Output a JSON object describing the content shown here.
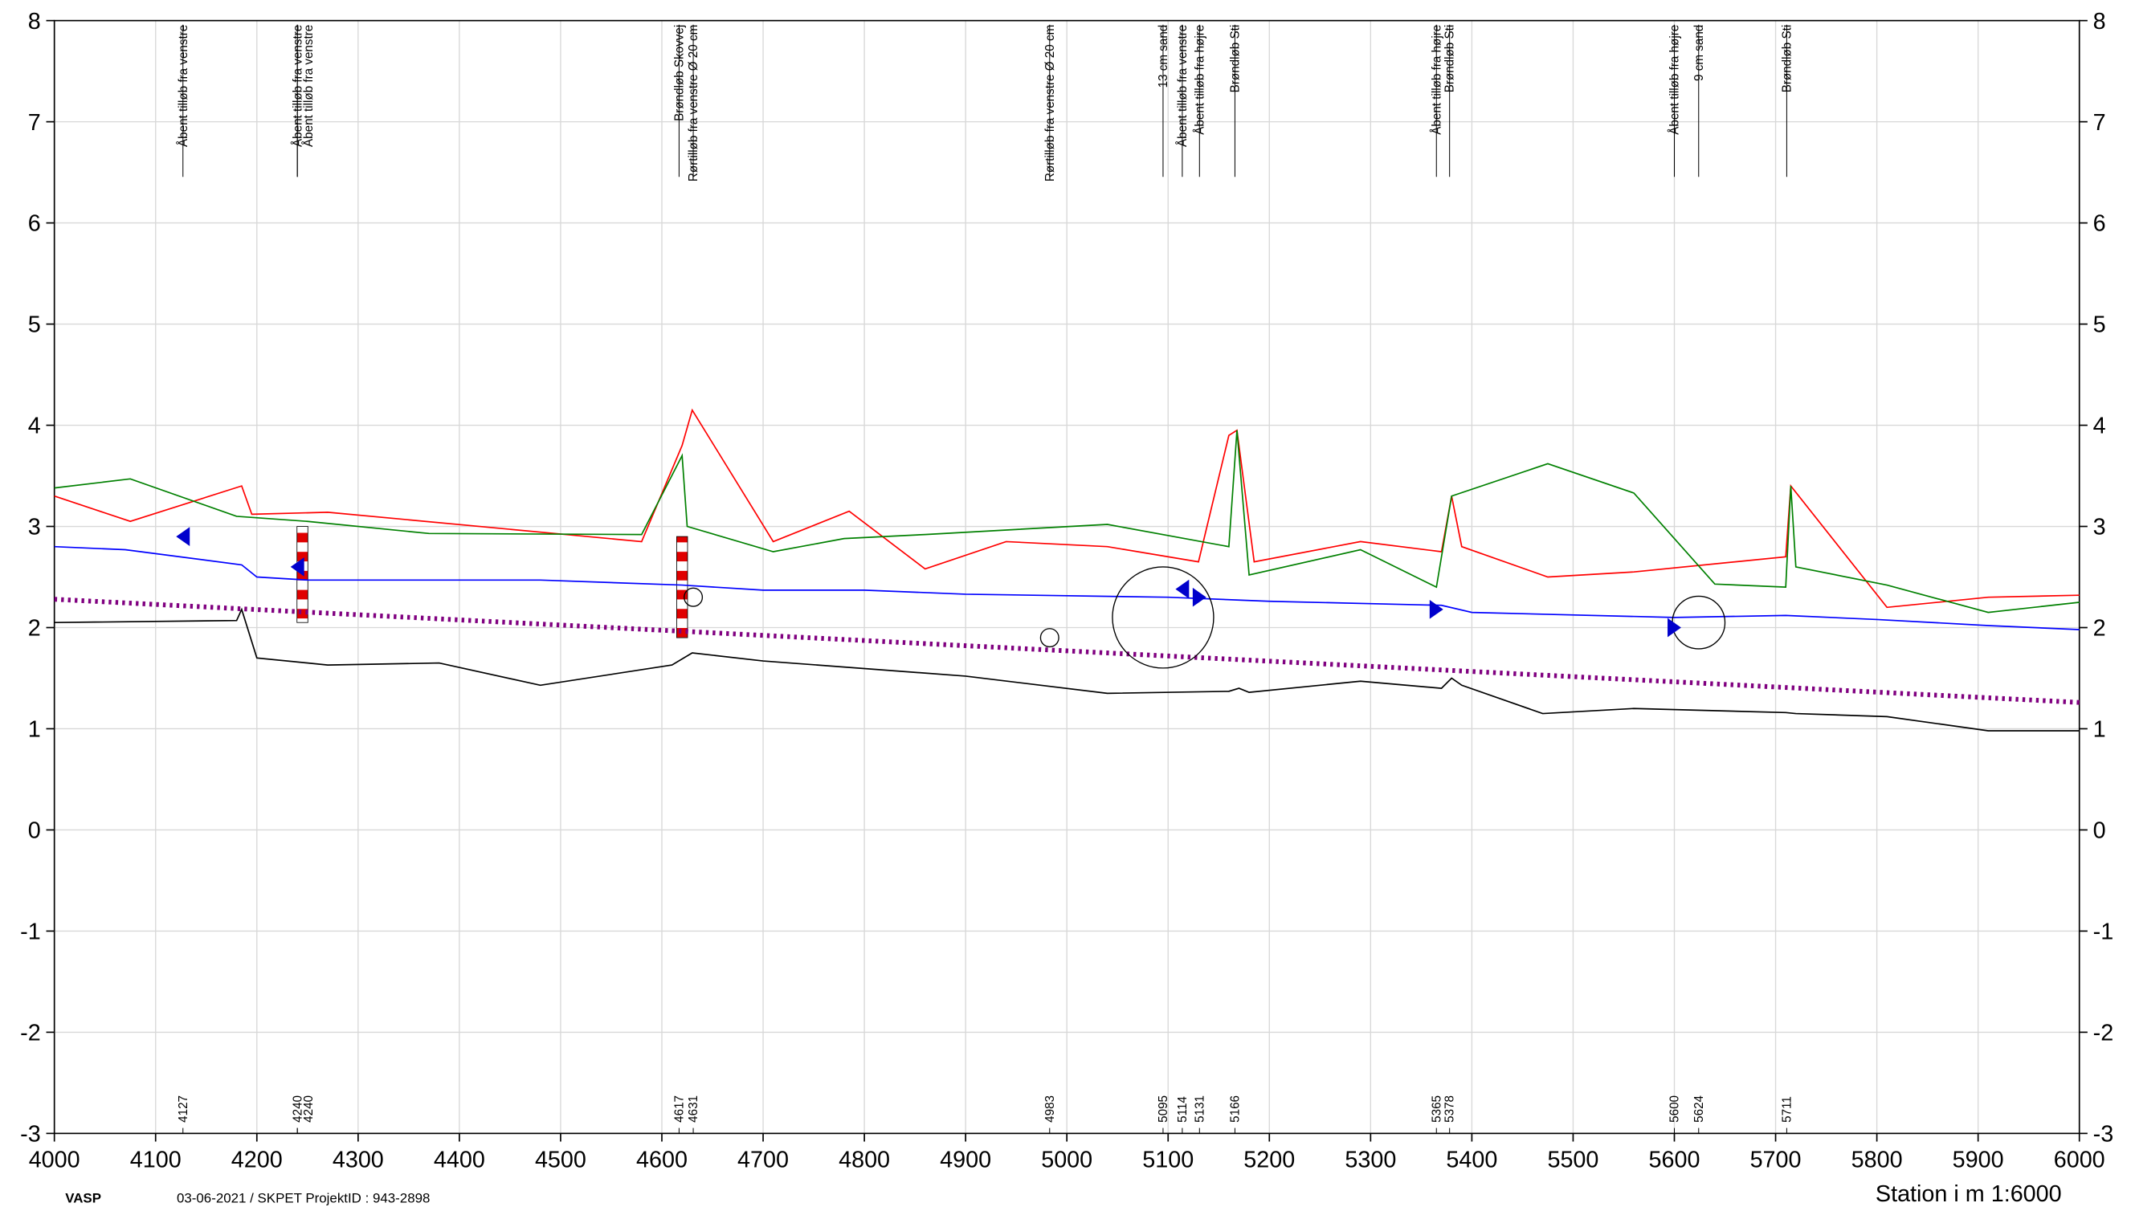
{
  "chart_data": {
    "type": "line",
    "xlim": [
      4000,
      6000
    ],
    "ylim": [
      -3,
      8
    ],
    "xticks": [
      4000,
      4100,
      4200,
      4300,
      4400,
      4500,
      4600,
      4700,
      4800,
      4900,
      5000,
      5100,
      5200,
      5300,
      5400,
      5500,
      5600,
      5700,
      5800,
      5900,
      6000
    ],
    "yticks": [
      -3,
      -2,
      -1,
      0,
      1,
      2,
      3,
      4,
      5,
      6,
      7,
      8
    ],
    "grid": true,
    "x_label": "Station i m  1:6000",
    "footer_left": "VASP",
    "footer_info": "03-06-2021 / SKPET   ProjektID : 943-2898",
    "series": [
      {
        "name": "red",
        "color": "#ff0000",
        "x": [
          4000,
          4075,
          4185,
          4195,
          4270,
          4580,
          4620,
          4630,
          4710,
          4785,
          4860,
          4940,
          5040,
          5130,
          5160,
          5168,
          5185,
          5290,
          5370,
          5380,
          5390,
          5475,
          5560,
          5710,
          5715,
          5810,
          5910,
          6000
        ],
        "values": [
          3.3,
          3.05,
          3.4,
          3.12,
          3.14,
          2.85,
          3.8,
          4.15,
          2.85,
          3.15,
          2.58,
          2.85,
          2.8,
          2.65,
          3.9,
          3.95,
          2.65,
          2.85,
          2.75,
          3.3,
          2.8,
          2.5,
          2.55,
          2.7,
          3.4,
          2.2,
          2.3,
          2.32
        ]
      },
      {
        "name": "green",
        "color": "#008000",
        "x": [
          4000,
          4075,
          4180,
          4250,
          4370,
          4580,
          4620,
          4625,
          4710,
          4780,
          4860,
          5040,
          5160,
          5168,
          5180,
          5290,
          5365,
          5380,
          5475,
          5560,
          5640,
          5710,
          5715,
          5720,
          5810,
          5910,
          6000
        ],
        "values": [
          3.38,
          3.47,
          3.1,
          3.05,
          2.93,
          2.92,
          3.7,
          3.0,
          2.75,
          2.88,
          2.92,
          3.02,
          2.8,
          3.95,
          2.52,
          2.77,
          2.4,
          3.3,
          3.62,
          3.33,
          2.43,
          2.4,
          3.4,
          2.6,
          2.42,
          2.15,
          2.25
        ]
      },
      {
        "name": "blue",
        "color": "#0000ff",
        "x": [
          4000,
          4070,
          4185,
          4200,
          4250,
          4480,
          4620,
          4700,
          4800,
          4900,
          5100,
          5200,
          5370,
          5400,
          5600,
          5710,
          5800,
          5910,
          6000
        ],
        "values": [
          2.8,
          2.77,
          2.62,
          2.5,
          2.47,
          2.47,
          2.42,
          2.37,
          2.37,
          2.33,
          2.3,
          2.26,
          2.22,
          2.15,
          2.1,
          2.12,
          2.08,
          2.02,
          1.98
        ]
      },
      {
        "name": "black",
        "color": "#000000",
        "x": [
          4000,
          4180,
          4185,
          4200,
          4270,
          4380,
          4480,
          4610,
          4630,
          4700,
          4900,
          5040,
          5160,
          5170,
          5180,
          5290,
          5370,
          5380,
          5390,
          5470,
          5560,
          5710,
          5720,
          5810,
          5910,
          6000
        ],
        "values": [
          2.05,
          2.07,
          2.18,
          1.7,
          1.63,
          1.65,
          1.43,
          1.63,
          1.75,
          1.67,
          1.52,
          1.35,
          1.37,
          1.4,
          1.36,
          1.47,
          1.4,
          1.5,
          1.43,
          1.15,
          1.2,
          1.16,
          1.15,
          1.12,
          0.98,
          0.98
        ]
      },
      {
        "name": "purple",
        "color": "#800080",
        "dotted": true,
        "x": [
          4000,
          6000
        ],
        "values": [
          2.28,
          1.26
        ]
      }
    ],
    "stations": [
      {
        "x": 4127,
        "label": "4127",
        "text": "Åbent tilløb fra venstre"
      },
      {
        "x": 4240,
        "label": "4240",
        "text": "Åbent tilløb fra venstre"
      },
      {
        "x": 4240,
        "label": "4240",
        "text": "Åbent tilløb fra venstre"
      },
      {
        "x": 4617,
        "label": "4617",
        "text": "Brøndløb Skovvej"
      },
      {
        "x": 4631,
        "label": "4631",
        "text": "Rørtilløb fra venstre Ø 20 cm"
      },
      {
        "x": 4983,
        "label": "4983",
        "text": "Rørtilløb fra venstre Ø 20 cm"
      },
      {
        "x": 5095,
        "label": "5095",
        "text": "13 cm sand"
      },
      {
        "x": 5114,
        "label": "5114",
        "text": "Åbent tilløb fra venstre"
      },
      {
        "x": 5131,
        "label": "5131",
        "text": "Åbent tilløb fra højre"
      },
      {
        "x": 5166,
        "label": "5166",
        "text": "Brøndløb Sti"
      },
      {
        "x": 5365,
        "label": "5365",
        "text": "Åbent tilløb fra højre"
      },
      {
        "x": 5378,
        "label": "5378",
        "text": "Brøndløb Sti"
      },
      {
        "x": 5600,
        "label": "5600",
        "text": "Åbent tilløb fra højre"
      },
      {
        "x": 5624,
        "label": "5624",
        "text": "9 cm sand"
      },
      {
        "x": 5711,
        "label": "5711",
        "text": "Brøndløb Sti"
      }
    ],
    "markers": [
      {
        "x": 4127,
        "y": 2.9,
        "shape": "triangle-left"
      },
      {
        "x": 4240,
        "y": 2.6,
        "shape": "triangle-left"
      },
      {
        "x": 5114,
        "y": 2.38,
        "shape": "triangle-left"
      },
      {
        "x": 5131,
        "y": 2.3,
        "shape": "triangle-right"
      },
      {
        "x": 5365,
        "y": 2.18,
        "shape": "triangle-right"
      },
      {
        "x": 5600,
        "y": 2.0,
        "shape": "triangle-right"
      }
    ],
    "circles": [
      {
        "x": 4631,
        "y": 2.3,
        "r": 0.09
      },
      {
        "x": 4983,
        "y": 1.9,
        "r": 0.09
      },
      {
        "x": 5095,
        "y": 2.1,
        "r": 0.5
      },
      {
        "x": 5624,
        "y": 2.05,
        "r": 0.26
      }
    ],
    "posts": [
      {
        "x": 4245,
        "y0": 2.05,
        "y1": 3.0
      },
      {
        "x": 4620,
        "y0": 1.9,
        "y1": 2.9
      }
    ]
  }
}
